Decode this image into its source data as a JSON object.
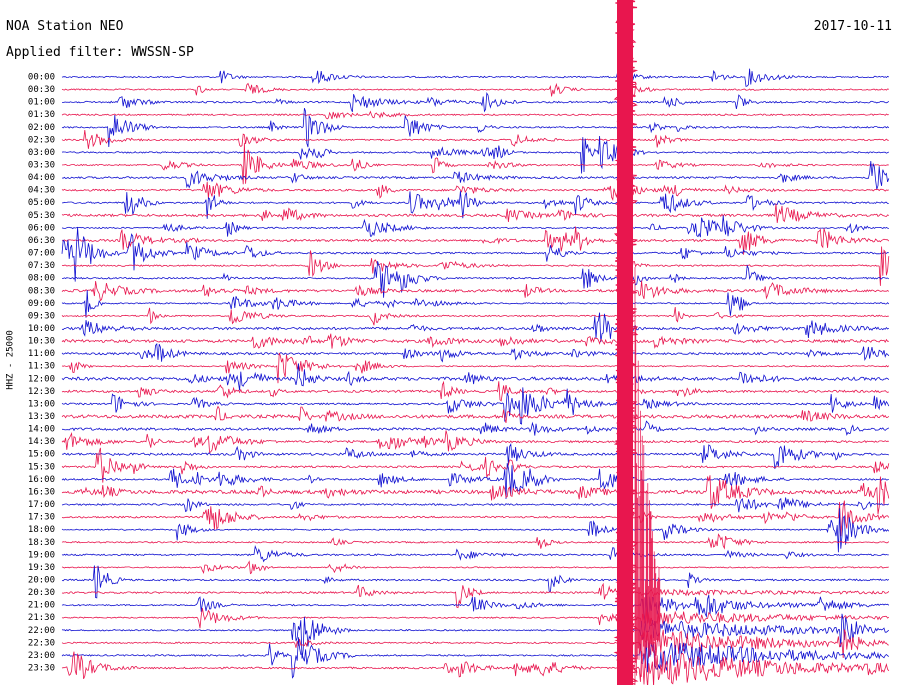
{
  "header": {
    "station": "NOA Station NEO",
    "filter": "Applied filter: WWSSN-SP",
    "date": "2017-10-11"
  },
  "channel_label": "HHZ - 25000",
  "rows": [
    "00:00",
    "00:30",
    "01:00",
    "01:30",
    "02:00",
    "02:30",
    "03:00",
    "03:30",
    "04:00",
    "04:30",
    "05:00",
    "05:30",
    "06:00",
    "06:30",
    "07:00",
    "07:30",
    "08:00",
    "08:30",
    "09:00",
    "09:30",
    "10:00",
    "10:30",
    "11:00",
    "11:30",
    "12:00",
    "12:30",
    "13:00",
    "13:30",
    "14:00",
    "14:30",
    "15:00",
    "15:30",
    "16:00",
    "16:30",
    "17:00",
    "17:30",
    "18:00",
    "18:30",
    "19:00",
    "19:30",
    "20:00",
    "20:30",
    "21:00",
    "21:30",
    "22:00",
    "22:30",
    "23:00",
    "23:30"
  ]
}
